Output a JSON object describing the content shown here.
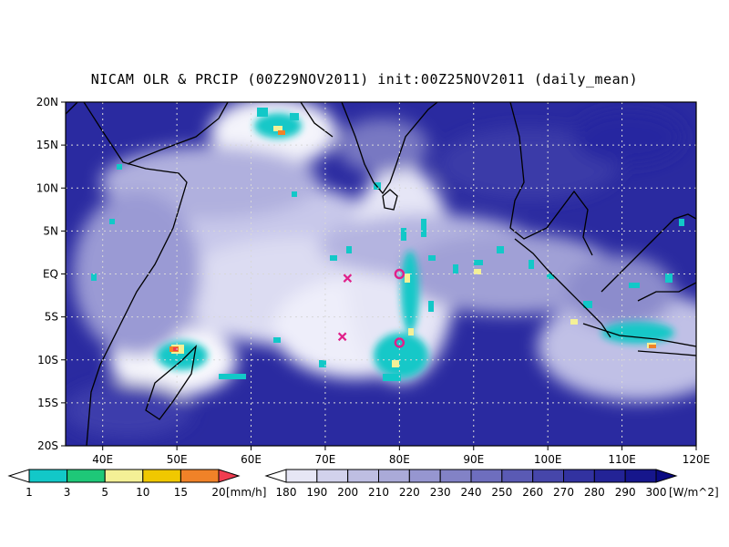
{
  "title": "NICAM OLR & PRCIP (00Z29NOV2011) init:00Z25NOV2011 (daily_mean)",
  "map": {
    "lon_range": [
      35,
      120
    ],
    "lat_range": [
      -20,
      20
    ],
    "lat_ticks": [
      {
        "value": 20,
        "label": "20N"
      },
      {
        "value": 15,
        "label": "15N"
      },
      {
        "value": 10,
        "label": "10N"
      },
      {
        "value": 5,
        "label": "5N"
      },
      {
        "value": 0,
        "label": "EQ"
      },
      {
        "value": -5,
        "label": "5S"
      },
      {
        "value": -10,
        "label": "10S"
      },
      {
        "value": -15,
        "label": "15S"
      },
      {
        "value": -20,
        "label": "20S"
      }
    ],
    "lon_ticks": [
      {
        "value": 40,
        "label": "40E"
      },
      {
        "value": 50,
        "label": "50E"
      },
      {
        "value": 60,
        "label": "60E"
      },
      {
        "value": 70,
        "label": "70E"
      },
      {
        "value": 80,
        "label": "80E"
      },
      {
        "value": 90,
        "label": "90E"
      },
      {
        "value": 100,
        "label": "100E"
      },
      {
        "value": 110,
        "label": "110E"
      },
      {
        "value": 120,
        "label": "120E"
      }
    ],
    "gridlines": true,
    "markers": [
      {
        "type": "x",
        "lon": 73,
        "lat": -0.5,
        "color": "#e0208a"
      },
      {
        "type": "x",
        "lon": 72.3,
        "lat": -7.3,
        "color": "#e0208a"
      },
      {
        "type": "circle",
        "lon": 80,
        "lat": 0,
        "color": "#e0208a"
      },
      {
        "type": "circle",
        "lon": 80,
        "lat": -8,
        "color": "#e0208a"
      }
    ]
  },
  "precip_legend": {
    "unit": "[mm/h]",
    "labels": [
      "1",
      "3",
      "5",
      "10",
      "15",
      "20"
    ],
    "colors": [
      "#ffffff",
      "#12c8c8",
      "#1ec878",
      "#f4f096",
      "#f0c800",
      "#f08228",
      "#f03c50"
    ]
  },
  "olr_legend": {
    "unit": "[W/m^2]",
    "labels": [
      "180",
      "190",
      "200",
      "210",
      "220",
      "230",
      "240",
      "250",
      "260",
      "270",
      "280",
      "290",
      "300"
    ],
    "colors": [
      "#ffffff",
      "#e6e6f5",
      "#d2d2ec",
      "#bebee2",
      "#aaaad8",
      "#9696d0",
      "#8282c6",
      "#6e6ebe",
      "#5a5ab4",
      "#4646aa",
      "#3232a0",
      "#232396",
      "#16168c",
      "#0a0a82"
    ]
  }
}
